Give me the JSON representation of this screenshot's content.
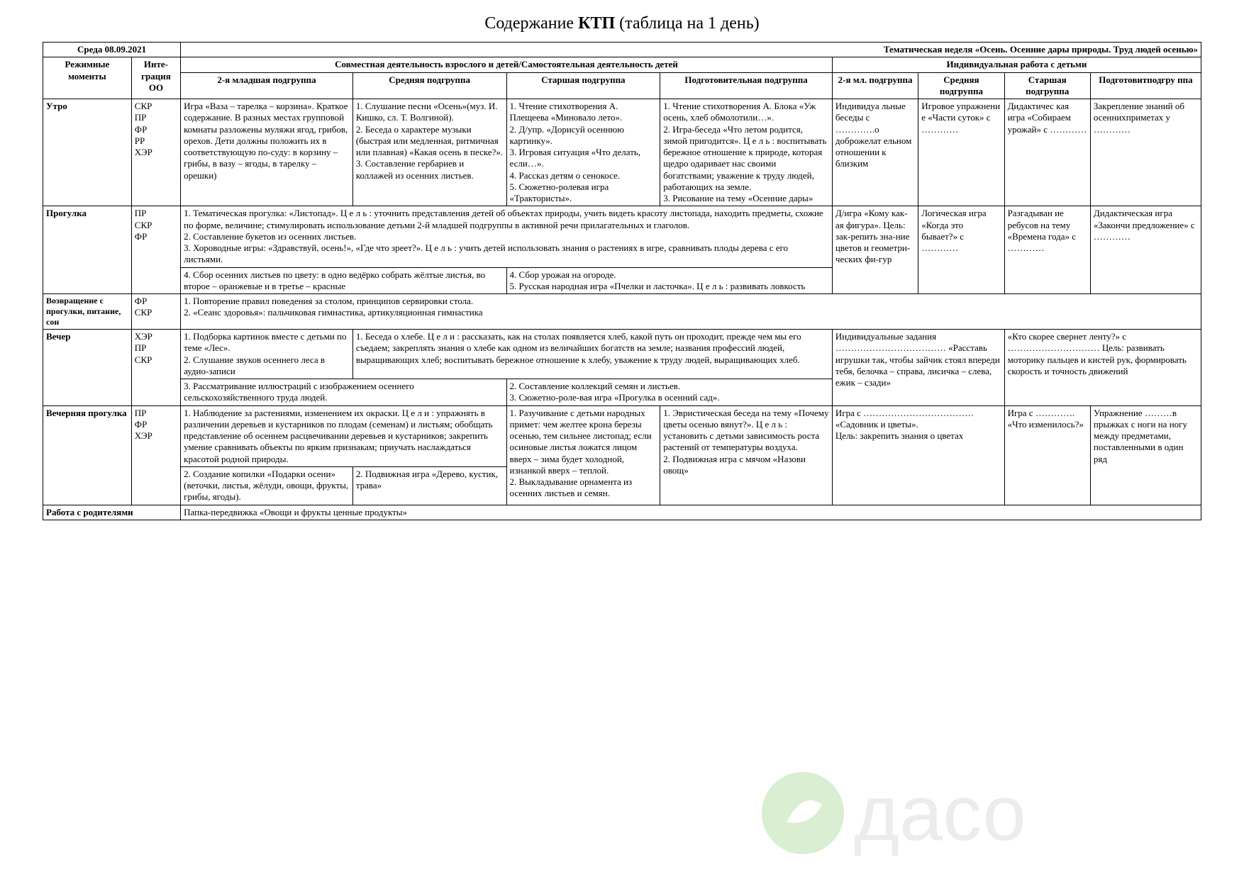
{
  "title_prefix": "Содержание ",
  "title_bold": "КТП",
  "title_suffix": " (таблица на 1 день)",
  "date_left": "Среда 08.09.2021",
  "date_right": "Тематическая неделя «Осень. Осенние дары природы. Труд людей осенью»",
  "col_widths": {
    "c1": 7.2,
    "c2": 4,
    "c3": 14,
    "c4": 12.5,
    "c5": 12.5,
    "c6": 14,
    "c7": 7,
    "c8": 7,
    "c9": 7,
    "c10": 9
  },
  "headers": {
    "h1": "Режимные моменты",
    "h2": "Инте-грация ОО",
    "joint": "Совместная деятельность взрослого и детей/Самостоятельная деятельность детей",
    "indiv": "Индивидуальная работа с детьми",
    "sub3": "2-я младшая подгруппа",
    "sub4": "Средняя подгруппа",
    "sub5": "Старшая подгруппа",
    "sub6": "Подготовительная подгруппа",
    "sub7": "2-я мл. подгруппа",
    "sub8": "Средняя подгруппа",
    "sub9": "Старшая подгруппа",
    "sub10": "Подготовитподгру ппа"
  },
  "morning": {
    "label": "Утро",
    "oo": "СКР\nПР\nФР\nРР\nХЭР",
    "c3": "Игра «Ваза – тарелка – корзина». Краткое содержание. В разных местах групповой комнаты разложены муляжи ягод, грибов, орехов. Дети должны положить их в соответствующую по-суду: в корзину – грибы, в вазу – ягоды, в тарелку – орешки)",
    "c4": "1. Слушание песни «Осень»(муз. И. Кишко, сл. Т. Волгиной).\n2. Беседа о характере музыки (быстрая или медленная, ритмичная или плавная) «Какая осень в песке?».\n3. Составление гербариев и коллажей из осенних листьев.",
    "c5": "1. Чтение стихотворения А. Плещеева «Миновало лето».\n2. Д/упр. «Дорисуй осеннюю картинку».\n3. Игровая ситуация «Что делать, если…».\n4. Рассказ детям о сенокосе.\n5. Сюжетно-ролевая игра «Трактористы».",
    "c6": "1. Чтение стихотворения А. Блока «Уж осень, хлеб обмолотили…».\n2. Игра-беседа «Что летом родится, зимой пригодится». Ц е л ь : воспитывать бережное отношение к природе, которая щедро одаривает нас своими богатствами; уважение к труду людей, работающих на земле.\n3. Рисование на тему «Осенние дары»",
    "c7": "Индивидуа льные беседы с ………….о доброжелат ельном отношении к близким",
    "c8": "Игровое упражнени е «Части суток» с …………",
    "c9": "Дидактичес кая игра «Собираем урожай» с …………",
    "c10": "Закрепление знаний об осеннихприметах у …………"
  },
  "walk": {
    "label": "Прогулка",
    "oo": "ПР\nСКР\nФР",
    "top_span": "1. Тематическая прогулка: «Листопад». Ц е л ь : уточнить представления детей об объектах природы, учить видеть красоту листопада, находить предметы, схожие по форме, величине; стимулировать использование детьми 2-й младшей подгруппы в активной речи прилагательных и глаголов.\n2. Составление букетов из осенних листьев.\n3. Хороводные игры: «Здравствуй, осень!», «Где что зреет?». Ц е л ь : учить  детей использовать знания о растениях в игре, сравнивать плоды дерева с его листьями.",
    "bot_left": "4. Сбор осенних листьев по цвету: в одно ведёрко собрать жёлтые листья, во второе – оранжевые и в третье – красные",
    "bot_right": "4. Сбор урожая на огороде.\n5. Русская народная игра «Пчелки и ласточка». Ц е л ь : развивать ловкость",
    "c7": "Д/игра «Кому как-ая фигура». Цель: зак-репить зна-ние цветов и геометри-ческих фи-гур",
    "c8": "Логическая игра «Когда это бывает?» с …………",
    "c9": "Разгадыван ие ребусов на тему «Времена года» с …………",
    "c10": "Дидактическая игра «Закончи предложение» с …………"
  },
  "return": {
    "label": "Возвращение с прогулки, питание, сон",
    "oo": "ФР\nСКР",
    "text": "1. Повторение правил поведения за столом, принципов сервировки стола.\n2. «Сеанс здоровья»: пальчиковая гимнастика, артикуляционная гимнастика"
  },
  "evening": {
    "label": "Вечер",
    "oo": "ХЭР\nПР\nСКР",
    "c3": "1. Подборка картинок вместе с детьми по теме «Лес».\n2. Слушание звуков осеннего леса в аудио-записи",
    "c456_top": "1. Беседа о хлебе. Ц е л и : рассказать, как на столах появляется хлеб, какой путь он проходит, прежде чем мы его съедаем; закреплять знания о хлебе как одном из величайших богатств на земле; названия профессий людей, выращивающих хлеб; воспитывать бережное отношение к хлебу, уважение к труду людей, выращивающих хлеб.",
    "c34_bot": "3. Рассматривание иллюстраций с изображением осеннего сельскохозяйственного труда людей.",
    "c56_bot": "2. Составление коллекций семян и листьев.\n3. Сюжетно-роле-вая игра «Прогулка в осенний сад».",
    "c78": "Индивидуальные задания ……………………………… «Расставь игрушки так, чтобы зайчик стоял впереди тебя, белочка – справа, лисичка – слева, ежик – сзади»",
    "c910": "«Кто скорее свернет ленту?» с ………………………… Цель: развивать моторику пальцев и кистей рук, формировать скорость и точность движений"
  },
  "evewalk": {
    "label": "Вечерняя прогулка",
    "oo": "ПР\nФР\nХЭР",
    "c34_top": "1. Наблюдение за растениями, изменением их окраски. Ц е л и : упражнять в различении деревьев и кустарников по плодам (семенам) и листьям; обобщать представление об осеннем расцвечивании деревьев и кустарников; закрепить умение сравнивать объекты по ярким признакам; приучать наслаждаться красотой родной природы.",
    "c3_bot": "2. Создание копилки «Подарки осени» (веточки, листья, жёлуди, овощи, фрукты, грибы, ягоды).",
    "c4_bot": "2. Подвижная игра «Дерево, кустик, трава»",
    "c5": "1. Разучивание с детьми народных примет: чем желтее крона березы осенью, тем сильнее листопад; если осиновые листья ложатся лицом вверх – зима будет холодной, изнанкой вверх – теплой.\n2. Выкладывание орнамента из осенних листьев и семян.",
    "c6": "1. Эвристическая беседа на тему «Почему цветы осенью вянут?». Ц е л ь : установить с детьми зависимость роста растений от температуры воздуха.\n2. Подвижная игра с мячом «Назови овощ»",
    "c78": "Игра с ……………………………… «Садовник и цветы».\nЦель: закрепить знания о цветах",
    "c9": "Игра с …………. «Что изменилось?»",
    "c10": "Упражнение ………в прыжках с ноги на ногу между предметами, поставленными в один ряд"
  },
  "parents": {
    "label": "Работа с родителями",
    "text": "Папка-передвижка «Овощи и фрукты ценные продукты»"
  },
  "watermark": {
    "text": "дасо",
    "circle_color": "#6fbf4a",
    "leaf_color": "#ffffff",
    "text_color": "#b8b8b8"
  }
}
